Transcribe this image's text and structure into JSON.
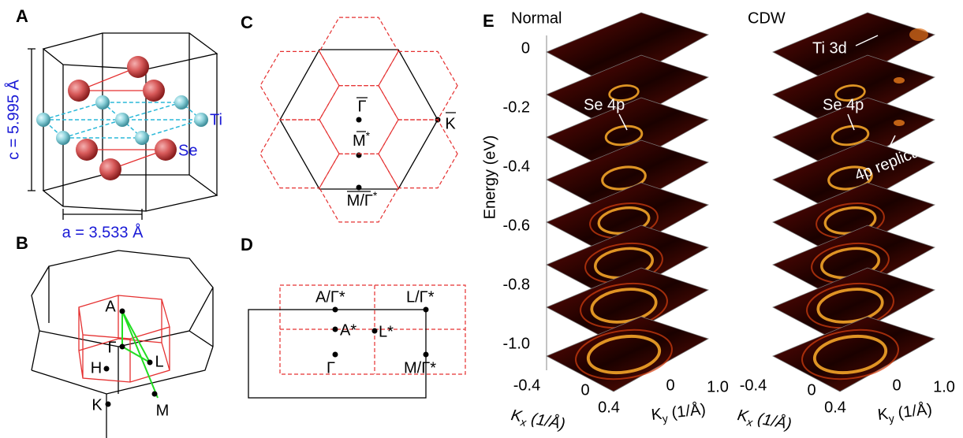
{
  "panel_labels": [
    "A",
    "B",
    "C",
    "D",
    "E"
  ],
  "panel_a": {
    "c_label": "c = 5.995 Å",
    "a_label": "a = 3.533 Å",
    "ti": "Ti",
    "se": "Se"
  },
  "panel_b": {
    "points": [
      "A",
      "Γ",
      "H",
      "L",
      "K",
      "M"
    ]
  },
  "panel_c": {
    "points": [
      {
        "text": "Γ"
      },
      {
        "text": "M",
        "sup": "*"
      },
      {
        "text": "K"
      },
      {
        "text": "M/Γ",
        "sup": "*"
      }
    ]
  },
  "panel_d": {
    "points": [
      "A/Γ*",
      "L/Γ*",
      "A*",
      "L*",
      "Γ",
      "M/Γ*"
    ]
  },
  "panel_e": {
    "energy_label": "Energy (eV)",
    "energy_ticks": [
      "0",
      "-0.2",
      "-0.4",
      "-0.6",
      "-0.8",
      "-1.0"
    ],
    "panels": [
      {
        "title": "Normal",
        "annotations": [
          "Se 4p"
        ],
        "kx_ticks": [
          "-0.4",
          "0",
          "0.4"
        ],
        "ky_ticks": [
          "0",
          "1.0"
        ],
        "kx_label": {
          "symbol": "K",
          "sub": "x",
          "unit": " (1/Å)"
        },
        "ky_label": {
          "symbol": "K",
          "sub": "y",
          "unit": " (1/Å)"
        }
      },
      {
        "title": "CDW",
        "annotations": [
          "Ti 3d",
          "Se 4p",
          "4p replica"
        ],
        "kx_ticks": [
          "-0.4",
          "0",
          "0.4"
        ],
        "ky_ticks": [
          "0",
          "1.0"
        ],
        "kx_label": {
          "symbol": "K",
          "sub": "x",
          "unit": " (1/Å)"
        },
        "ky_label": {
          "symbol": "K",
          "sub": "y",
          "unit": " (1/Å)"
        }
      }
    ]
  }
}
